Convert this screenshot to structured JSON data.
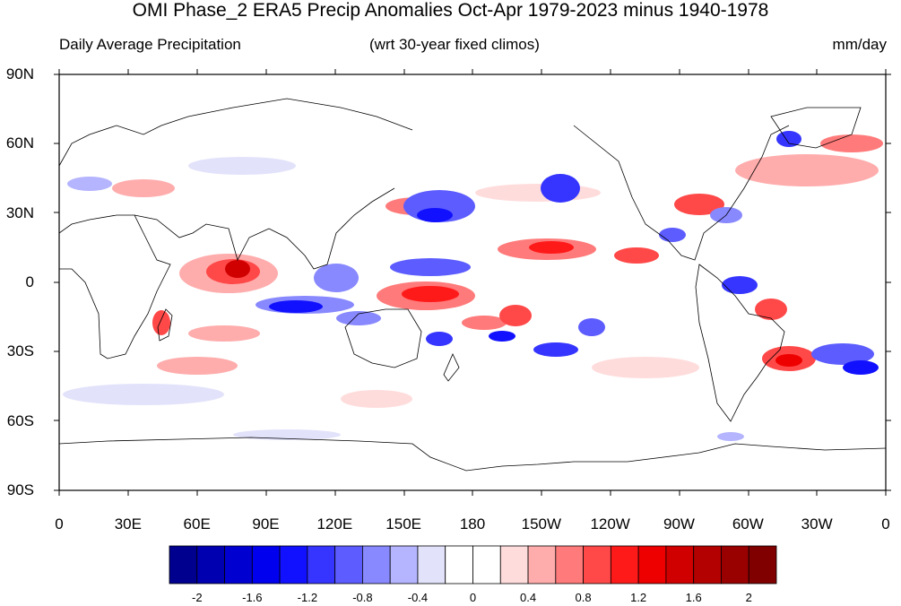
{
  "title": "OMI Phase_2 ERA5 Precip Anomalies Oct-Apr 1979-2023 minus 1940-1978",
  "subtitle_left": "Daily Average Precipitation",
  "subtitle_center": "(wrt 30-year fixed climos)",
  "subtitle_right": "mm/day",
  "lat_ticks": [
    "90N",
    "60N",
    "30N",
    "0",
    "30S",
    "60S",
    "90S"
  ],
  "lon_ticks": [
    "0",
    "30E",
    "60E",
    "90E",
    "120E",
    "150E",
    "180",
    "150W",
    "120W",
    "90W",
    "60W",
    "30W",
    "0"
  ],
  "colorbar": {
    "labels": [
      "-2",
      "-1.6",
      "-1.2",
      "-0.8",
      "-0.4",
      "0",
      "0.4",
      "0.8",
      "1.2",
      "1.6",
      "2"
    ],
    "colors": [
      "#00008f",
      "#0000b0",
      "#0000d0",
      "#0000ee",
      "#1111ff",
      "#3535ff",
      "#5c5cff",
      "#8888ff",
      "#b4b4ff",
      "#e2e2fb",
      "#ffffff",
      "#ffffff",
      "#ffdcdc",
      "#ffacac",
      "#ff7a7a",
      "#ff4848",
      "#ff1a1a",
      "#ee0000",
      "#d00000",
      "#b30000",
      "#990000",
      "#800000"
    ]
  }
}
